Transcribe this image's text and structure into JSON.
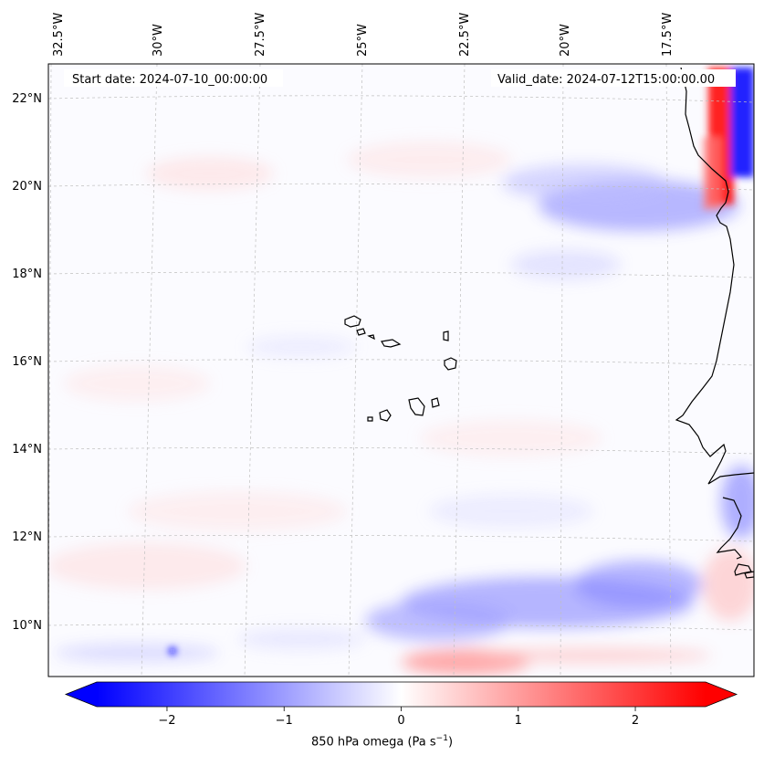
{
  "map": {
    "start_date_label": "Start date: 2024-07-10_00:00:00",
    "valid_date_label": "Valid_date: 2024-07-12T15:00:00.00",
    "lon_labels": [
      "32.5°W",
      "30°W",
      "27.5°W",
      "25°W",
      "22.5°W",
      "20°W",
      "17.5°W"
    ],
    "lat_labels": [
      "22°N",
      "20°N",
      "18°N",
      "16°N",
      "14°N",
      "12°N",
      "10°N"
    ]
  },
  "colorbar": {
    "title": "850 hPa omega (Pa s",
    "title_exp": "−1",
    "title_end": ")",
    "ticks": [
      "−2",
      "−1",
      "0",
      "1",
      "2"
    ],
    "vmin": -2.6,
    "vmax": 2.6,
    "colors": {
      "neg": "#0000ff",
      "mid": "#ffffff",
      "pos": "#ff0000",
      "coast": "#000000"
    }
  }
}
